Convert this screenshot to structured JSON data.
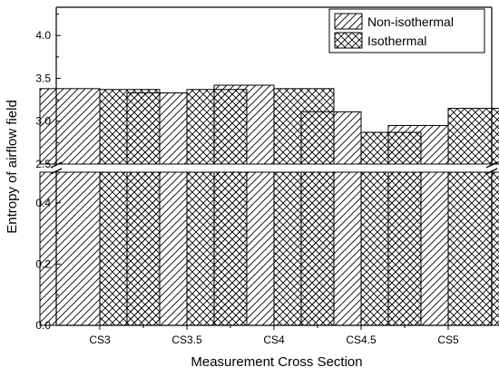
{
  "chart_data": {
    "type": "bar",
    "title": "",
    "xlabel": "Measurement Cross Section",
    "ylabel": "Entropy of airflow field",
    "categories": [
      "CS3",
      "CS3.5",
      "CS4",
      "CS4.5",
      "CS5"
    ],
    "series": [
      {
        "name": "Non-isothermal",
        "pattern": "diagonal-hatch",
        "values": [
          3.38,
          3.33,
          3.42,
          3.11,
          2.95
        ]
      },
      {
        "name": "Isothermal",
        "pattern": "cross-hatch",
        "values": [
          3.37,
          3.37,
          3.38,
          2.87,
          3.15
        ]
      }
    ],
    "broken_axis": true,
    "y_lower": {
      "range": [
        0.0,
        0.5
      ],
      "ticks": [
        "0.0",
        "0.2",
        "0.4"
      ]
    },
    "y_upper": {
      "range": [
        2.5,
        4.33
      ],
      "ticks": [
        "2.5",
        "3.0",
        "3.5",
        "4.0"
      ]
    },
    "legend_position": "top-right",
    "grid": false,
    "colors": {
      "bar_fill": "#ffffff",
      "hatch": "#000000",
      "axis": "#000000"
    }
  }
}
